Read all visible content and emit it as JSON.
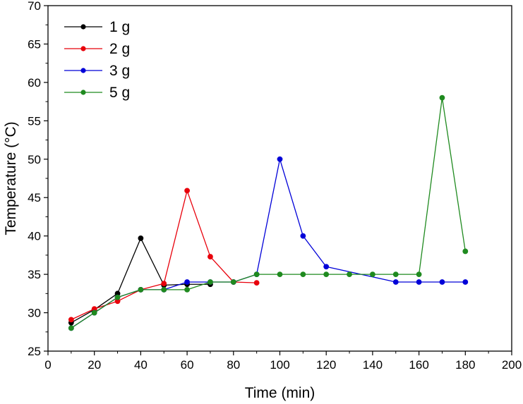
{
  "chart_data": {
    "type": "line",
    "xlabel": "Time (min)",
    "ylabel": "Temperature (°C)",
    "xlim": [
      0,
      200
    ],
    "ylim": [
      25,
      70
    ],
    "xticks": [
      0,
      20,
      40,
      60,
      80,
      100,
      120,
      140,
      160,
      180,
      200
    ],
    "yticks": [
      25,
      30,
      35,
      40,
      45,
      50,
      55,
      60,
      65,
      70
    ],
    "grid": false,
    "legend_position": "top-left",
    "series": [
      {
        "name": "1 g",
        "color": "#000000",
        "x": [
          10,
          20,
          30,
          40,
          50,
          60,
          70
        ],
        "y": [
          28.7,
          30.4,
          32.5,
          39.7,
          33.6,
          33.7,
          33.7
        ]
      },
      {
        "name": "2 g",
        "color": "#e8000b",
        "x": [
          10,
          20,
          30,
          40,
          50,
          60,
          70,
          80,
          90
        ],
        "y": [
          29.1,
          30.5,
          31.5,
          33.0,
          33.8,
          45.9,
          37.3,
          34.0,
          33.9
        ]
      },
      {
        "name": "3 g",
        "color": "#0000d8",
        "x": [
          10,
          20,
          30,
          40,
          50,
          60,
          70,
          80,
          90,
          100,
          110,
          120,
          150,
          160,
          170,
          180
        ],
        "y": [
          28.0,
          30.0,
          32.0,
          33.0,
          33.0,
          34.0,
          34.0,
          34.0,
          35.0,
          50.0,
          40.0,
          36.0,
          34.0,
          34.0,
          34.0,
          34.0
        ]
      },
      {
        "name": "5 g",
        "color": "#1f8a1f",
        "x": [
          10,
          20,
          30,
          40,
          50,
          60,
          70,
          80,
          90,
          100,
          110,
          120,
          130,
          140,
          150,
          160,
          170,
          180
        ],
        "y": [
          28.0,
          30.0,
          32.0,
          33.0,
          33.0,
          33.0,
          34.0,
          34.0,
          35.0,
          35.0,
          35.0,
          35.0,
          35.0,
          35.0,
          35.0,
          35.0,
          58.0,
          38.0
        ]
      }
    ]
  }
}
